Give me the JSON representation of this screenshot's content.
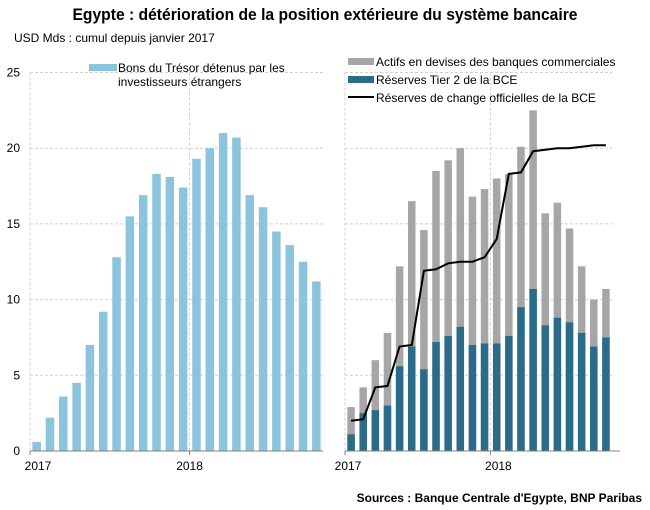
{
  "title": "Egypte : détérioration de la position extérieure du système bancaire",
  "subtitle": "USD Mds : cumul depuis janvier  2017",
  "source": "Sources : Banque Centrale d'Egypte, BNP Paribas",
  "colors": {
    "tbills": "#8bc4dc",
    "assets": "#a6a6a6",
    "tier2": "#2b6b8a",
    "reserves": "#000000",
    "grid": "#d0d0d0"
  },
  "chart_data": [
    {
      "type": "bar",
      "title": "",
      "xlabel": "",
      "ylabel": "",
      "ylim": [
        0,
        25
      ],
      "yticks": [
        "0",
        "5",
        "10",
        "15",
        "20",
        "25"
      ],
      "xticks": [
        "2017",
        "2018"
      ],
      "grid": true,
      "legend_position": "top",
      "series": [
        {
          "name_lines": [
            "Bons du Trésor détenus par les",
            "investisseurs étrangers"
          ],
          "values": [
            0.6,
            2.2,
            3.6,
            4.5,
            7.0,
            9.2,
            12.8,
            15.5,
            16.9,
            18.3,
            18.1,
            17.4,
            19.3,
            20.0,
            21.0,
            20.7,
            16.9,
            16.1,
            14.5,
            13.6,
            12.5,
            11.2
          ]
        }
      ]
    },
    {
      "type": "bar",
      "title": "",
      "xlabel": "",
      "ylabel": "",
      "ylim": [
        0,
        25
      ],
      "xticks": [
        "2017",
        "2018"
      ],
      "grid": true,
      "legend_position": "top",
      "series": [
        {
          "name": "Actifs en devises des banques commerciales",
          "kind": "bar-total",
          "values": [
            2.9,
            4.2,
            6.0,
            7.8,
            12.2,
            16.5,
            14.6,
            18.5,
            19.2,
            20.0,
            16.8,
            17.3,
            18.0,
            18.3,
            20.1,
            22.5,
            15.7,
            16.4,
            14.7,
            12.2,
            10.0,
            10.7
          ]
        },
        {
          "name": "Réserves Tier 2 de la BCE",
          "kind": "bar",
          "values": [
            1.1,
            2.5,
            2.7,
            3.0,
            5.6,
            6.9,
            5.4,
            7.2,
            7.6,
            8.2,
            7.0,
            7.1,
            7.1,
            7.6,
            9.5,
            10.7,
            8.3,
            8.8,
            8.5,
            7.8,
            6.9,
            7.5
          ]
        },
        {
          "name": "Réserves de change officielles de la BCE",
          "kind": "line",
          "values": [
            2.0,
            2.1,
            4.2,
            4.3,
            6.9,
            7.0,
            11.9,
            12.0,
            12.4,
            12.5,
            12.5,
            12.8,
            14.0,
            18.3,
            18.4,
            19.8,
            19.9,
            20.0,
            20.0,
            20.1,
            20.2,
            20.2
          ]
        }
      ]
    }
  ]
}
